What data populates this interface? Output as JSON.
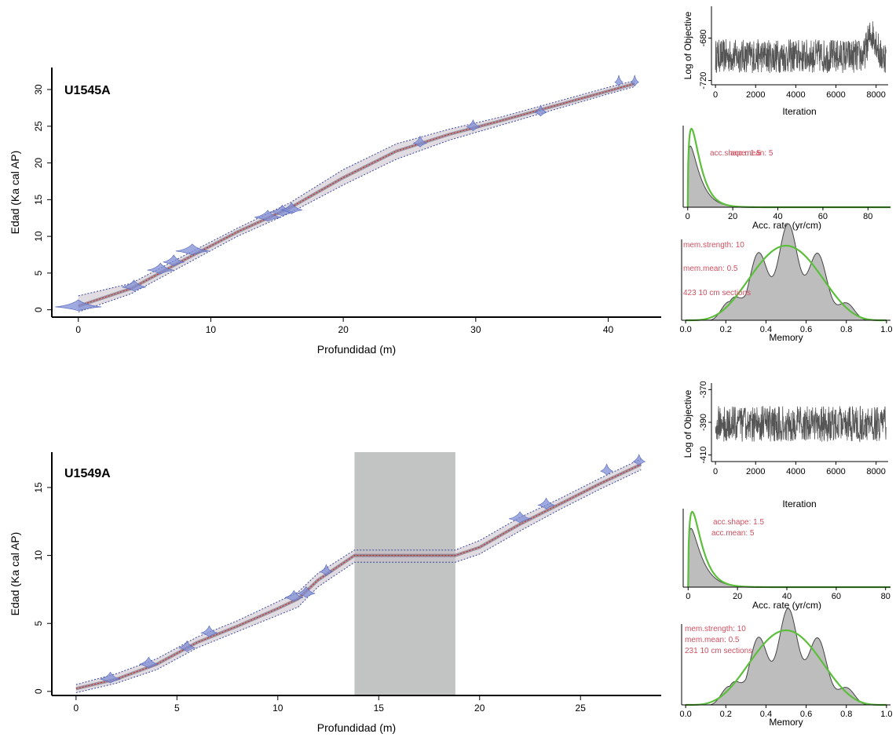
{
  "chart_data": [
    {
      "type": "line",
      "panel": "age-depth",
      "site_label": "U1545A",
      "xlabel": "Profundidad (m)",
      "ylabel": "Edad (Ka cal AP)",
      "xlim": [
        -2,
        44
      ],
      "ylim": [
        -1,
        33
      ],
      "x_ticks": [
        0,
        10,
        20,
        30,
        40
      ],
      "y_ticks": [
        0,
        5,
        10,
        15,
        20,
        25,
        30
      ],
      "dates": [
        {
          "x": 0.0,
          "y": 0.4,
          "w": 3.5
        },
        {
          "x": 4.2,
          "y": 3.1,
          "w": 1.8
        },
        {
          "x": 6.2,
          "y": 5.4,
          "w": 2.0
        },
        {
          "x": 7.2,
          "y": 6.5,
          "w": 1.6
        },
        {
          "x": 8.6,
          "y": 8.0,
          "w": 2.5
        },
        {
          "x": 14.3,
          "y": 12.6,
          "w": 2.0
        },
        {
          "x": 15.4,
          "y": 13.3,
          "w": 1.8
        },
        {
          "x": 16.1,
          "y": 13.6,
          "w": 1.6
        },
        {
          "x": 25.8,
          "y": 22.7,
          "w": 1.0
        },
        {
          "x": 29.8,
          "y": 24.9,
          "w": 1.0
        },
        {
          "x": 34.9,
          "y": 26.9,
          "w": 0.9
        },
        {
          "x": 40.8,
          "y": 31.0,
          "w": 0.6
        },
        {
          "x": 42.0,
          "y": 31.0,
          "w": 0.6
        }
      ],
      "model_mean": [
        [
          0,
          0.5
        ],
        [
          4,
          2.9
        ],
        [
          8,
          6.8
        ],
        [
          12,
          10.6
        ],
        [
          16,
          13.9
        ],
        [
          20,
          18.0
        ],
        [
          24,
          21.6
        ],
        [
          28,
          23.9
        ],
        [
          32,
          25.8
        ],
        [
          36,
          27.8
        ],
        [
          40,
          29.8
        ],
        [
          42,
          30.8
        ]
      ],
      "model_lower": [
        [
          0,
          -0.3
        ],
        [
          4,
          2.2
        ],
        [
          8,
          6.1
        ],
        [
          12,
          10.0
        ],
        [
          16,
          13.2
        ],
        [
          20,
          17.0
        ],
        [
          24,
          20.5
        ],
        [
          28,
          23.1
        ],
        [
          32,
          25.2
        ],
        [
          36,
          27.3
        ],
        [
          40,
          29.4
        ],
        [
          42,
          30.4
        ]
      ],
      "model_upper": [
        [
          0,
          1.9
        ],
        [
          4,
          3.6
        ],
        [
          8,
          7.4
        ],
        [
          12,
          11.1
        ],
        [
          16,
          14.6
        ],
        [
          20,
          19.1
        ],
        [
          24,
          22.6
        ],
        [
          28,
          24.6
        ],
        [
          32,
          26.3
        ],
        [
          36,
          28.3
        ],
        [
          40,
          30.3
        ],
        [
          42,
          31.2
        ]
      ]
    },
    {
      "type": "line",
      "panel": "mcmc-trace",
      "xlabel": "Iteration",
      "ylabel": "Log of Objective",
      "xlim": [
        -200,
        8600
      ],
      "ylim": [
        -724,
        -650
      ],
      "x_ticks": [
        0,
        2000,
        4000,
        6000,
        8000
      ],
      "y_ticks": [
        -720,
        -680
      ],
      "baseline": -697,
      "spread": 16,
      "excursion": {
        "from": 7400,
        "to": 8200,
        "shift": 20
      }
    },
    {
      "type": "area",
      "panel": "acc-rate-prior-posterior",
      "xlabel": "Acc. rate (yr/cm)",
      "xlim": [
        -2,
        90
      ],
      "x_ticks": [
        0,
        20,
        40,
        60,
        80
      ],
      "annotations": [
        "acc.shape: 1.5",
        "acc.mean: 5"
      ],
      "prior_shape": 1.5,
      "prior_mean": 5,
      "posterior_shape": 1.3,
      "posterior_mean": 5
    },
    {
      "type": "area",
      "panel": "memory-prior-posterior",
      "xlabel": "Memory",
      "xlim": [
        -0.02,
        1.02
      ],
      "x_ticks": [
        "0.0",
        "0.2",
        "0.4",
        "0.6",
        "0.8",
        "1.0"
      ],
      "annotations": [
        "mem.strength: 10",
        "mem.mean: 0.5",
        "423 10 cm sections"
      ]
    },
    {
      "type": "line",
      "panel": "age-depth",
      "site_label": "U1549A",
      "xlabel": "Profundidad (m)",
      "ylabel": "Edad (Ka cal AP)",
      "xlim": [
        -1.2,
        29
      ],
      "ylim": [
        -0.3,
        17.6
      ],
      "x_ticks": [
        0,
        5,
        10,
        15,
        20,
        25
      ],
      "y_ticks": [
        0,
        5,
        10,
        15
      ],
      "hiatus": [
        13.8,
        18.8
      ],
      "dates": [
        {
          "x": 1.7,
          "y": 0.9,
          "w": 1.0
        },
        {
          "x": 3.6,
          "y": 2.0,
          "w": 0.9
        },
        {
          "x": 5.5,
          "y": 3.2,
          "w": 0.8
        },
        {
          "x": 6.6,
          "y": 4.3,
          "w": 0.8
        },
        {
          "x": 10.8,
          "y": 6.9,
          "w": 0.9
        },
        {
          "x": 11.4,
          "y": 7.2,
          "w": 0.9
        },
        {
          "x": 12.4,
          "y": 8.8,
          "w": 0.6
        },
        {
          "x": 22.0,
          "y": 12.7,
          "w": 1.1
        },
        {
          "x": 23.3,
          "y": 13.7,
          "w": 0.8
        },
        {
          "x": 26.3,
          "y": 16.2,
          "w": 0.6
        },
        {
          "x": 27.9,
          "y": 16.9,
          "w": 0.6
        }
      ],
      "model_mean": [
        [
          0,
          0.2
        ],
        [
          2,
          0.9
        ],
        [
          4,
          2.0
        ],
        [
          6,
          3.6
        ],
        [
          8,
          4.8
        ],
        [
          10,
          6.1
        ],
        [
          11,
          6.8
        ],
        [
          12,
          8.2
        ],
        [
          13.8,
          10.0
        ],
        [
          18.8,
          10.0
        ],
        [
          20,
          10.6
        ],
        [
          22,
          12.3
        ],
        [
          24,
          13.8
        ],
        [
          26,
          15.3
        ],
        [
          28,
          16.7
        ]
      ],
      "model_lower": [
        [
          0,
          -0.1
        ],
        [
          2,
          0.6
        ],
        [
          4,
          1.6
        ],
        [
          6,
          3.2
        ],
        [
          8,
          4.4
        ],
        [
          10,
          5.6
        ],
        [
          11,
          6.2
        ],
        [
          12,
          7.7
        ],
        [
          13.8,
          9.5
        ],
        [
          18.8,
          9.5
        ],
        [
          20,
          10.1
        ],
        [
          22,
          11.8
        ],
        [
          24,
          13.4
        ],
        [
          26,
          14.9
        ],
        [
          28,
          16.3
        ]
      ],
      "model_upper": [
        [
          0,
          0.5
        ],
        [
          2,
          1.3
        ],
        [
          4,
          2.4
        ],
        [
          6,
          4.0
        ],
        [
          8,
          5.2
        ],
        [
          10,
          6.6
        ],
        [
          11,
          7.3
        ],
        [
          12,
          8.7
        ],
        [
          13.8,
          10.4
        ],
        [
          18.8,
          10.4
        ],
        [
          20,
          11.1
        ],
        [
          22,
          12.8
        ],
        [
          24,
          14.2
        ],
        [
          26,
          15.7
        ],
        [
          28,
          17.1
        ]
      ]
    },
    {
      "type": "line",
      "panel": "mcmc-trace",
      "xlabel": "Iteration",
      "ylabel": "Log of Objective",
      "xlim": [
        -200,
        8600
      ],
      "ylim": [
        -414,
        -366
      ],
      "x_ticks": [
        0,
        2000,
        4000,
        6000,
        8000
      ],
      "y_ticks": [
        -410,
        -390,
        -370
      ],
      "baseline": -391,
      "spread": 11
    },
    {
      "type": "area",
      "panel": "acc-rate-prior-posterior",
      "xlabel": "Acc. rate (yr/cm)",
      "xlim": [
        -2,
        82
      ],
      "x_ticks": [
        0,
        20,
        40,
        60,
        80
      ],
      "annotations": [
        "acc.shape:  1.5",
        "acc.mean:  5"
      ],
      "prior_shape": 1.5,
      "prior_mean": 5,
      "posterior_shape": 1.3,
      "posterior_mean": 5
    },
    {
      "type": "area",
      "panel": "memory-prior-posterior",
      "xlabel": "Memory",
      "xlim": [
        -0.02,
        1.02
      ],
      "x_ticks": [
        "0.0",
        "0.2",
        "0.4",
        "0.6",
        "0.8",
        "1.0"
      ],
      "annotations": [
        "mem.strength: 10",
        "mem.mean: 0.5",
        "231 10 cm sections"
      ]
    }
  ],
  "colors": {
    "date_fill": "#7f8fd6",
    "date_stroke": "#5566bb",
    "model_band": "#c8c0c8",
    "model_core": "#6a5a6a",
    "mean_line": "#d02020",
    "range_line": "#3a4a9a",
    "trace": "#555555",
    "prior_line": "#5cbf3c",
    "posterior_fill": "#bdbdbd",
    "posterior_line": "#444444",
    "hiatus": "#c2c4c4"
  }
}
